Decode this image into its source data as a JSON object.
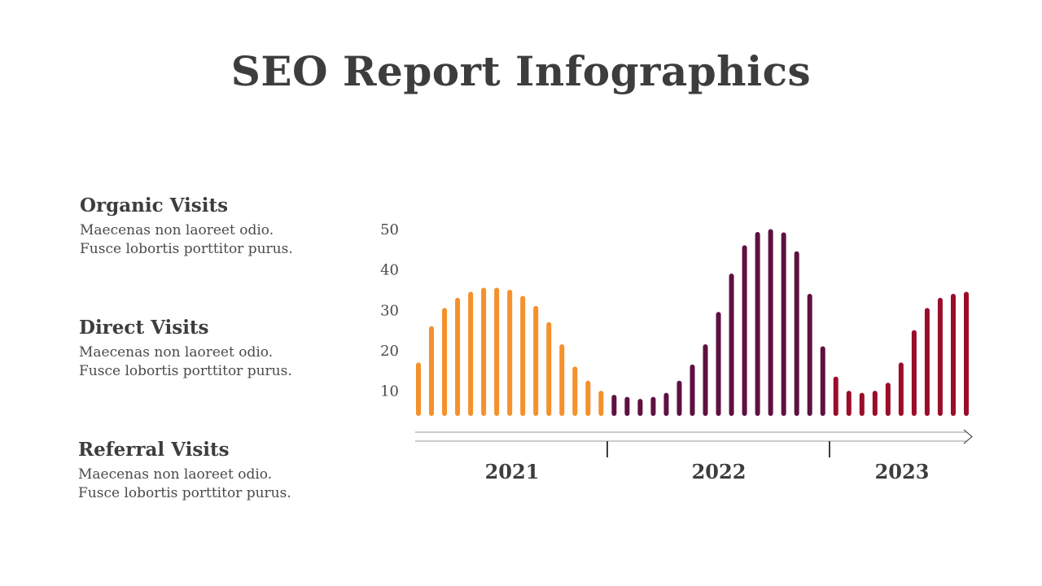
{
  "title": "SEO Report Infographics",
  "legend": [
    {
      "title": "Organic Visits",
      "desc_line1": "Maecenas non laoreet odio.",
      "desc_line2": "Fusce lobortis porttitor purus."
    },
    {
      "title": "Direct Visits",
      "desc_line1": "Maecenas non laoreet odio.",
      "desc_line2": "Fusce lobortis porttitor purus."
    },
    {
      "title": "Referral Visits",
      "desc_line1": "Maecenas non laoreet odio.",
      "desc_line2": "Fusce lobortis porttitor purus."
    }
  ],
  "colors": {
    "orange": "#f5902b",
    "purple": "#5e1140",
    "red": "#9b0c2b",
    "axis": "#9a9a9a",
    "text": "#3d3d3d"
  },
  "chart_data": {
    "type": "bar",
    "ylim": [
      4.5,
      50
    ],
    "yticks": [
      10,
      20,
      30,
      40,
      50
    ],
    "grid": false,
    "values": [
      16.5,
      25.5,
      30,
      32.5,
      34,
      35,
      35,
      34.5,
      33,
      30.5,
      26.5,
      21,
      15.5,
      12,
      9.5,
      8.5,
      8,
      7.5,
      8,
      9,
      12,
      16,
      21,
      29,
      38.5,
      45.5,
      48.8,
      49.5,
      48.7,
      44,
      33.5,
      20.5,
      13,
      9.5,
      9,
      9.5,
      11.5,
      16.5,
      24.5,
      30,
      32.5,
      33.5,
      34
    ],
    "color_keys": [
      "orange",
      "orange",
      "orange",
      "orange",
      "orange",
      "orange",
      "orange",
      "orange",
      "orange",
      "orange",
      "orange",
      "orange",
      "orange",
      "orange",
      "orange",
      "purple",
      "purple",
      "purple",
      "purple",
      "purple",
      "purple",
      "purple",
      "purple",
      "purple",
      "purple",
      "purple",
      "purple",
      "purple",
      "purple",
      "purple",
      "purple",
      "purple",
      "red",
      "red",
      "red",
      "red",
      "red",
      "red",
      "red",
      "red",
      "red",
      "red",
      "red"
    ],
    "years": [
      {
        "label": "2021"
      },
      {
        "label": "2022"
      },
      {
        "label": "2023"
      }
    ]
  }
}
